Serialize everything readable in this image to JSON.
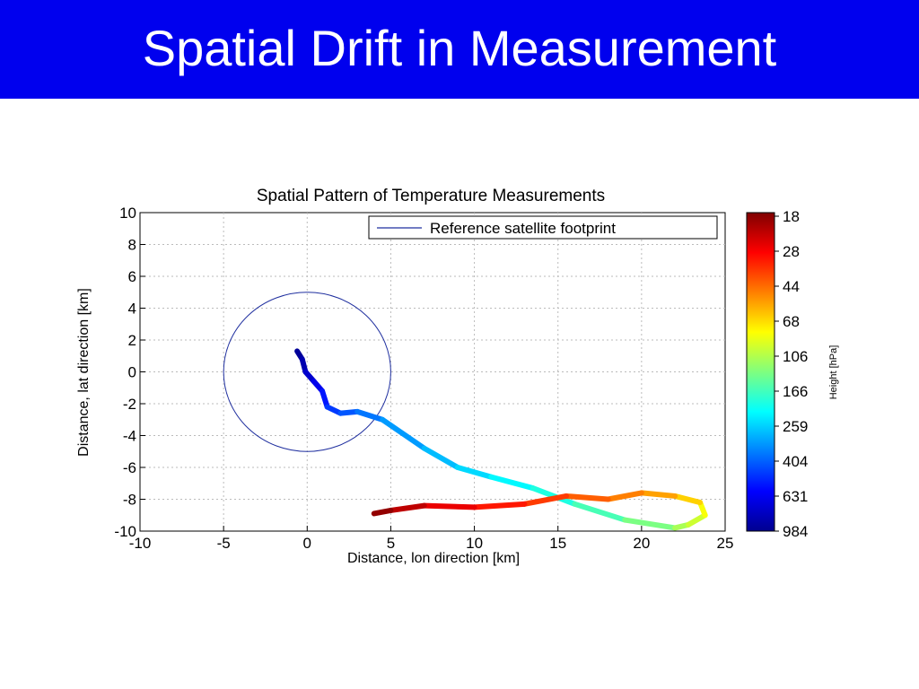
{
  "slide": {
    "title": "Spatial Drift in Measurement"
  },
  "chart_data": {
    "type": "line",
    "title": "Spatial Pattern of Temperature Measurements",
    "xlabel": "Distance, lon direction [km]",
    "ylabel": "Distance, lat direction [km]",
    "xlim": [
      -10,
      25
    ],
    "ylim": [
      -10,
      10
    ],
    "xticks": [
      -10,
      -5,
      0,
      5,
      10,
      15,
      20,
      25
    ],
    "yticks": [
      -10,
      -8,
      -6,
      -4,
      -2,
      0,
      2,
      4,
      6,
      8,
      10
    ],
    "grid": true,
    "legend": {
      "position": "top-right",
      "entries": [
        "Reference satellite footprint"
      ]
    },
    "footprint": {
      "center": [
        0,
        0
      ],
      "radius_km": 5,
      "color": "#1f2f9f"
    },
    "colorbar": {
      "label": "Height [hPa]",
      "ticks": [
        "18",
        "28",
        "44",
        "68",
        "106",
        "166",
        "259",
        "404",
        "631",
        "984"
      ],
      "colors": [
        "#7f0000",
        "#ff0000",
        "#ff7f00",
        "#ffff00",
        "#7fff7f",
        "#00ffff",
        "#007fff",
        "#0000ff",
        "#00008f"
      ]
    },
    "trajectory": [
      {
        "x": -0.6,
        "y": 1.3,
        "pressure": 984
      },
      {
        "x": -0.3,
        "y": 0.8,
        "pressure": 900
      },
      {
        "x": -0.1,
        "y": 0.0,
        "pressure": 800
      },
      {
        "x": 0.4,
        "y": -0.6,
        "pressure": 700
      },
      {
        "x": 0.9,
        "y": -1.2,
        "pressure": 600
      },
      {
        "x": 1.2,
        "y": -2.2,
        "pressure": 500
      },
      {
        "x": 2.0,
        "y": -2.6,
        "pressure": 450
      },
      {
        "x": 3.0,
        "y": -2.5,
        "pressure": 400
      },
      {
        "x": 4.5,
        "y": -3.0,
        "pressure": 350
      },
      {
        "x": 7.0,
        "y": -4.8,
        "pressure": 300
      },
      {
        "x": 9.0,
        "y": -6.0,
        "pressure": 270
      },
      {
        "x": 11.0,
        "y": -6.6,
        "pressure": 240
      },
      {
        "x": 13.5,
        "y": -7.3,
        "pressure": 210
      },
      {
        "x": 16.0,
        "y": -8.3,
        "pressure": 180
      },
      {
        "x": 19.0,
        "y": -9.3,
        "pressure": 150
      },
      {
        "x": 22.0,
        "y": -9.8,
        "pressure": 120
      },
      {
        "x": 22.8,
        "y": -9.6,
        "pressure": 106
      },
      {
        "x": 23.8,
        "y": -9.0,
        "pressure": 90
      },
      {
        "x": 23.5,
        "y": -8.2,
        "pressure": 75
      },
      {
        "x": 22.0,
        "y": -7.8,
        "pressure": 60
      },
      {
        "x": 20.0,
        "y": -7.6,
        "pressure": 52
      },
      {
        "x": 18.0,
        "y": -8.0,
        "pressure": 46
      },
      {
        "x": 15.5,
        "y": -7.8,
        "pressure": 40
      },
      {
        "x": 13.0,
        "y": -8.3,
        "pressure": 35
      },
      {
        "x": 10.0,
        "y": -8.5,
        "pressure": 30
      },
      {
        "x": 7.0,
        "y": -8.4,
        "pressure": 25
      },
      {
        "x": 5.0,
        "y": -8.7,
        "pressure": 21
      },
      {
        "x": 4.0,
        "y": -8.9,
        "pressure": 18
      }
    ]
  }
}
